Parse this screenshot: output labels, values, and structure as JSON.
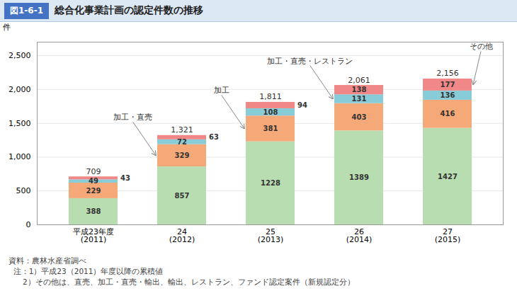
{
  "chart_data": {
    "type": "bar",
    "stacked": true,
    "figure_label": "図1-6-1",
    "title": "総合化事業計画の認定件数の推移",
    "ylabel": "件",
    "categories": [
      "平成23年度\n(2011)",
      "24\n(2012)",
      "25\n(2013)",
      "26\n(2014)",
      "27\n(2015)"
    ],
    "series": [
      {
        "color": "#b8ddb0",
        "values": [
          388,
          857,
          1228,
          1389,
          1427
        ]
      },
      {
        "color": "#f5a878",
        "values": [
          229,
          329,
          381,
          403,
          416
        ],
        "annotations": [
          {
            "category": "24\n(2012)",
            "text": "加工・直売"
          },
          {
            "category": "25\n(2013)",
            "text": "加工"
          }
        ]
      },
      {
        "color": "#88ccd8",
        "values": [
          49,
          72,
          108,
          131,
          136
        ],
        "annotations": [
          {
            "category": "26\n(2014)",
            "text": "加工・直売・レストラン"
          }
        ]
      },
      {
        "color": "#f08888",
        "values": [
          43,
          63,
          94,
          138,
          177
        ],
        "annotations": [
          {
            "category": "27\n(2015)",
            "text": "その他"
          }
        ]
      }
    ],
    "totals": {
      "values": [
        709,
        1321,
        1811,
        2061,
        2156
      ],
      "value_labels": [
        "709",
        "1,321",
        "1,811",
        "2,061",
        "2,156"
      ]
    },
    "ylim": [
      0,
      2700
    ],
    "yticks": [
      0,
      500,
      {
        "value": 1000,
        "label": "1,000"
      },
      {
        "value": 1500,
        "label": "1,500"
      },
      {
        "value": 2000,
        "label": "2,000"
      },
      {
        "value": 2500,
        "label": "2,500"
      }
    ],
    "grid": true,
    "data_labels": true,
    "caption": [
      "資料：農林水産省調べ",
      "  注：1）平成23（2011）年度以降の累積値",
      "      2）その他は、直売、加工・直売・輸出、輸出、レストラン、ファンド認定案件（新規認定分）"
    ]
  }
}
